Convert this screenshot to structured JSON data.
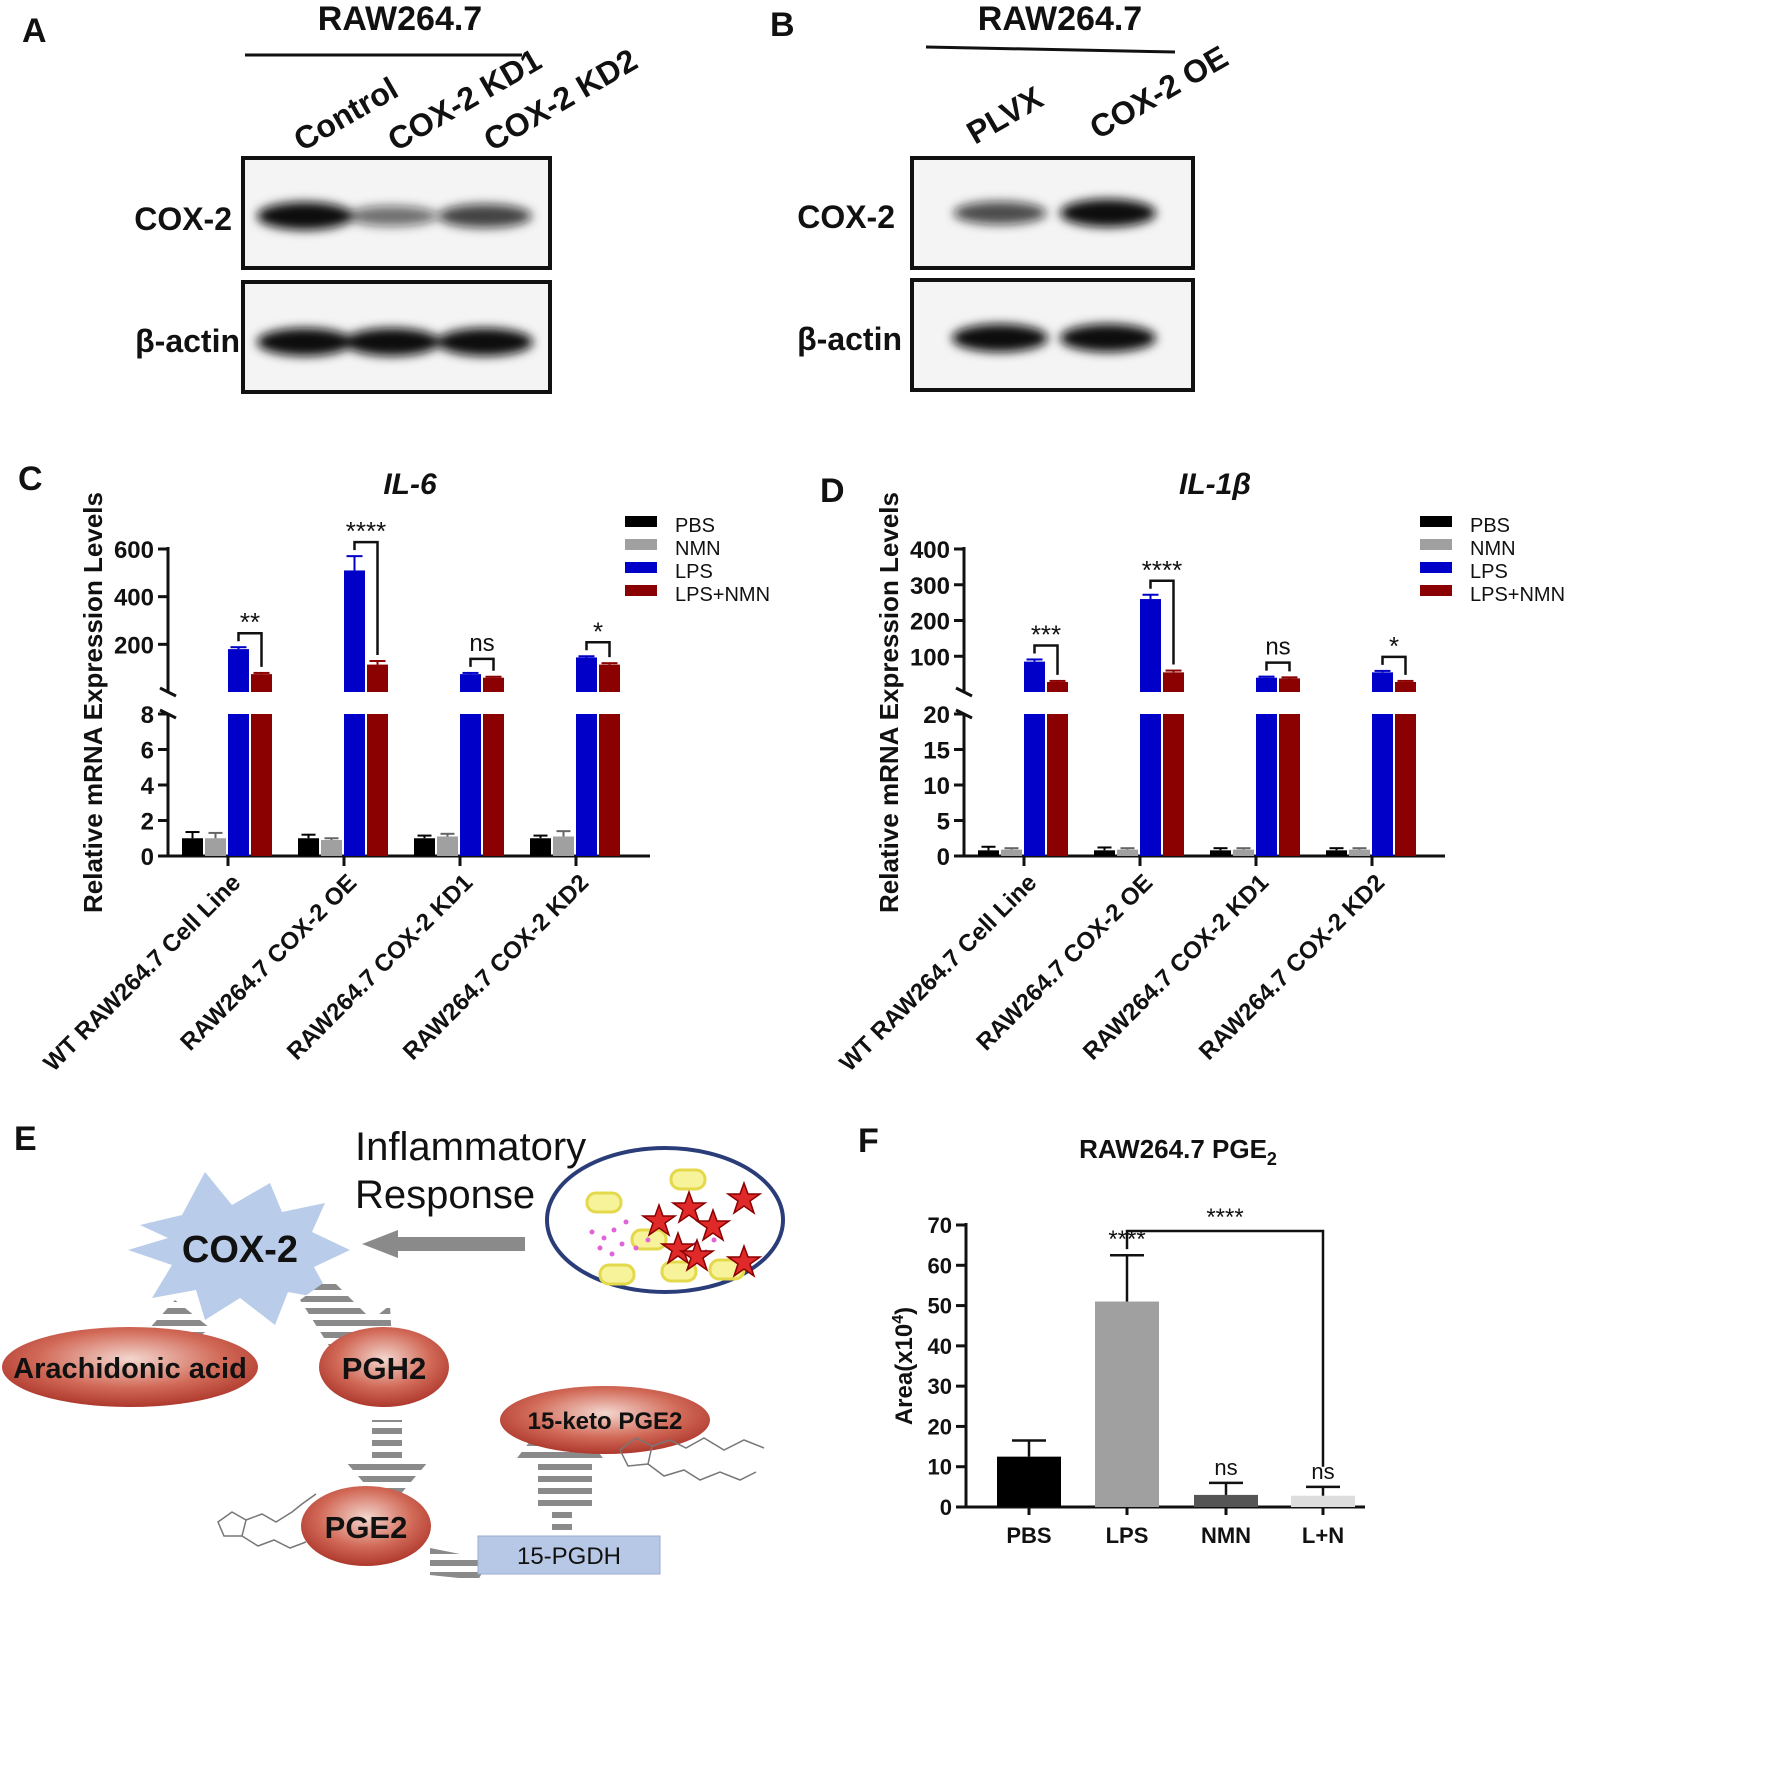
{
  "panels": {
    "A": {
      "letter": "A",
      "cell_line": "RAW264.7",
      "lanes": [
        "Control",
        "COX-2 KD1",
        "COX-2 KD2"
      ],
      "rows": [
        "COX-2",
        "β-actin"
      ],
      "band_intensity": {
        "COX-2": [
          1.0,
          0.45,
          0.7
        ],
        "β-actin": [
          1.0,
          1.0,
          1.0
        ]
      }
    },
    "B": {
      "letter": "B",
      "cell_line": "RAW264.7",
      "lanes": [
        "PLVX",
        "COX-2 OE"
      ],
      "rows": [
        "COX-2",
        "β-actin"
      ],
      "band_intensity": {
        "COX-2": [
          0.65,
          1.0
        ],
        "β-actin": [
          1.0,
          1.0
        ]
      }
    },
    "E": {
      "letter": "E",
      "labels": {
        "cox2": "COX-2",
        "inflammatory_1": "Inflammatory",
        "inflammatory_2": "Response",
        "arachidonic": "Arachidonic acid",
        "pgh2": "PGH2",
        "pge2": "PGE2",
        "keto": "15-keto PGE2",
        "pgdh": "15-PGDH"
      },
      "colors": {
        "burst": "#b9cdea",
        "oval": "#c8483c",
        "pgdh_box": "#b7c8e6",
        "arrow": "#8a8a8a"
      }
    }
  },
  "chart_data": [
    {
      "panel": "C",
      "type": "bar",
      "title": "IL-6",
      "ylabel": "Relative mRNA Expression Levels",
      "categories": [
        "WT RAW264.7 Cell Line",
        "RAW264.7 COX-2 OE",
        "RAW264.7 COX-2 KD1",
        "RAW264.7 COX-2 KD2"
      ],
      "series": [
        {
          "name": "PBS",
          "color": "#000000",
          "values": [
            1.0,
            1.0,
            1.0,
            1.0
          ],
          "errors": [
            0.35,
            0.2,
            0.15,
            0.15
          ]
        },
        {
          "name": "NMN",
          "color": "#a0a0a0",
          "values": [
            1.0,
            0.9,
            1.1,
            1.1
          ],
          "errors": [
            0.3,
            0.1,
            0.15,
            0.3
          ]
        },
        {
          "name": "LPS",
          "color": "#0000c8",
          "values": [
            180,
            510,
            75,
            145
          ],
          "errors": [
            8,
            60,
            5,
            5
          ]
        },
        {
          "name": "LPS+NMN",
          "color": "#8b0000",
          "values": [
            75,
            115,
            60,
            115
          ],
          "errors": [
            5,
            15,
            4,
            6
          ]
        }
      ],
      "axis_break": {
        "lower": [
          0,
          8
        ],
        "upper": [
          0,
          600
        ],
        "lower_ticks": [
          0,
          2,
          4,
          6,
          8
        ],
        "upper_ticks": [
          200,
          400,
          600
        ]
      },
      "tick_labels_lower": [
        "0",
        "2",
        "4",
        "6",
        "8"
      ],
      "tick_labels_upper": [
        "200",
        "400",
        "600"
      ],
      "significance": [
        "**",
        "****",
        "ns",
        "*"
      ],
      "legend": "top-right"
    },
    {
      "panel": "D",
      "type": "bar",
      "title": "IL-1β",
      "ylabel": "Relative mRNA Expression Levels",
      "categories": [
        "WT RAW264.7 Cell Line",
        "RAW264.7 COX-2 OE",
        "RAW264.7 COX-2 KD1",
        "RAW264.7 COX-2 KD2"
      ],
      "series": [
        {
          "name": "PBS",
          "color": "#000000",
          "values": [
            0.8,
            0.8,
            0.8,
            0.8
          ],
          "errors": [
            0.5,
            0.4,
            0.3,
            0.3
          ]
        },
        {
          "name": "NMN",
          "color": "#a0a0a0",
          "values": [
            0.9,
            0.9,
            0.9,
            0.9
          ],
          "errors": [
            0.2,
            0.2,
            0.2,
            0.2
          ]
        },
        {
          "name": "LPS",
          "color": "#0000c8",
          "values": [
            85,
            260,
            40,
            55
          ],
          "errors": [
            6,
            12,
            3,
            4
          ]
        },
        {
          "name": "LPS+NMN",
          "color": "#8b0000",
          "values": [
            28,
            55,
            38,
            28
          ],
          "errors": [
            3,
            5,
            3,
            3
          ]
        }
      ],
      "axis_break": {
        "lower": [
          0,
          20
        ],
        "upper": [
          0,
          400
        ],
        "lower_ticks": [
          0,
          5,
          10,
          15,
          20
        ],
        "upper_ticks": [
          100,
          200,
          300,
          400
        ]
      },
      "tick_labels_lower": [
        "0",
        "5",
        "10",
        "15",
        "20"
      ],
      "tick_labels_upper": [
        "100",
        "200",
        "300",
        "400"
      ],
      "significance": [
        "***",
        "****",
        "ns",
        "*"
      ],
      "legend": "top-right"
    },
    {
      "panel": "F",
      "type": "bar",
      "title": "RAW264.7 PGE",
      "title_sub": "2",
      "ylabel": "Area(x10",
      "ylabel_sup": "4",
      "ylabel_end": ")",
      "categories": [
        "PBS",
        "LPS",
        "NMN",
        "L+N"
      ],
      "values": [
        12.5,
        51,
        3,
        2.8
      ],
      "errors": [
        4,
        11.5,
        3,
        2.2
      ],
      "colors": [
        "#000000",
        "#a0a0a0",
        "#555555",
        "#dddddd"
      ],
      "ylim": [
        0,
        70
      ],
      "yticks": [
        0,
        10,
        20,
        30,
        40,
        50,
        60,
        70
      ],
      "ytick_labels": [
        "0",
        "10",
        "20",
        "30",
        "40",
        "50",
        "60",
        "70"
      ],
      "bar_labels": [
        "",
        "****",
        "ns",
        "ns"
      ],
      "bracket_label": "****"
    }
  ]
}
